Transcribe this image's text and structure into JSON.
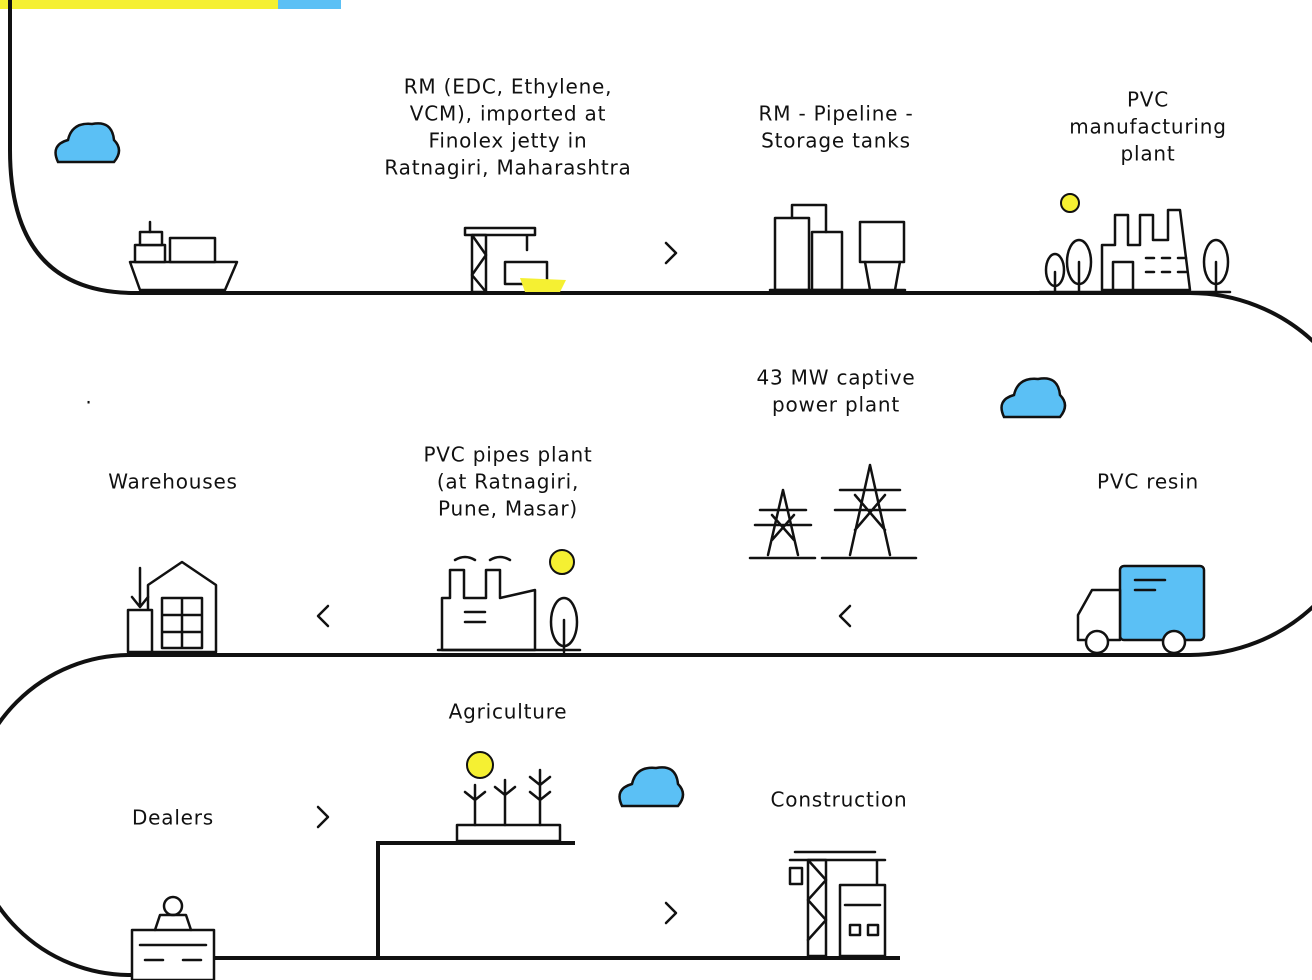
{
  "nodes": [
    {
      "lines": [
        "RM (EDC, Ethylene,",
        "VCM), imported at",
        "Finolex jetty in",
        "Ratnagiri, Maharashtra"
      ]
    },
    {
      "lines": [
        "RM - Pipeline -",
        "Storage tanks"
      ]
    },
    {
      "lines": [
        "PVC",
        "manufacturing",
        "plant"
      ]
    },
    {
      "lines": [
        "43 MW captive",
        "power plant"
      ]
    },
    {
      "lines": [
        "PVC resin"
      ]
    },
    {
      "lines": [
        "PVC pipes plant",
        "(at Ratnagiri,",
        "Pune, Masar)"
      ]
    },
    {
      "lines": [
        "Warehouses"
      ]
    },
    {
      "lines": [
        "Dealers"
      ]
    },
    {
      "lines": [
        "Agriculture"
      ]
    },
    {
      "lines": [
        "Construction"
      ]
    }
  ],
  "stray_mark": "."
}
